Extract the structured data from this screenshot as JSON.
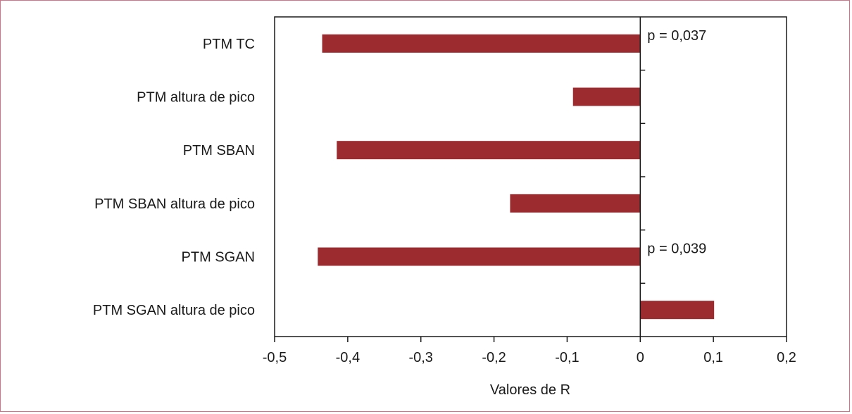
{
  "chart_data": {
    "type": "bar",
    "orientation": "horizontal",
    "categories": [
      "PTM TC",
      "PTM altura de pico",
      "PTM SBAN",
      "PTM SBAN altura de pico",
      "PTM SGAN",
      "PTM SGAN altura de pico"
    ],
    "values": [
      -0.435,
      -0.092,
      -0.415,
      -0.178,
      -0.441,
      0.101
    ],
    "bar_color": "#9b2b2f",
    "xlabel": "Valores de R",
    "xlim": [
      -0.5,
      0.2
    ],
    "xticks": [
      -0.5,
      -0.4,
      -0.3,
      -0.2,
      -0.1,
      0,
      0.1,
      0.2
    ],
    "xtick_labels": [
      "-0,5",
      "-0,4",
      "-0,3",
      "-0,2",
      "-0,1",
      "0",
      "0,1",
      "0,2"
    ],
    "grid": false,
    "annotations": [
      {
        "category": "PTM TC",
        "text": "p = 0,037"
      },
      {
        "category": "PTM SGAN",
        "text": "p = 0,039"
      }
    ]
  }
}
